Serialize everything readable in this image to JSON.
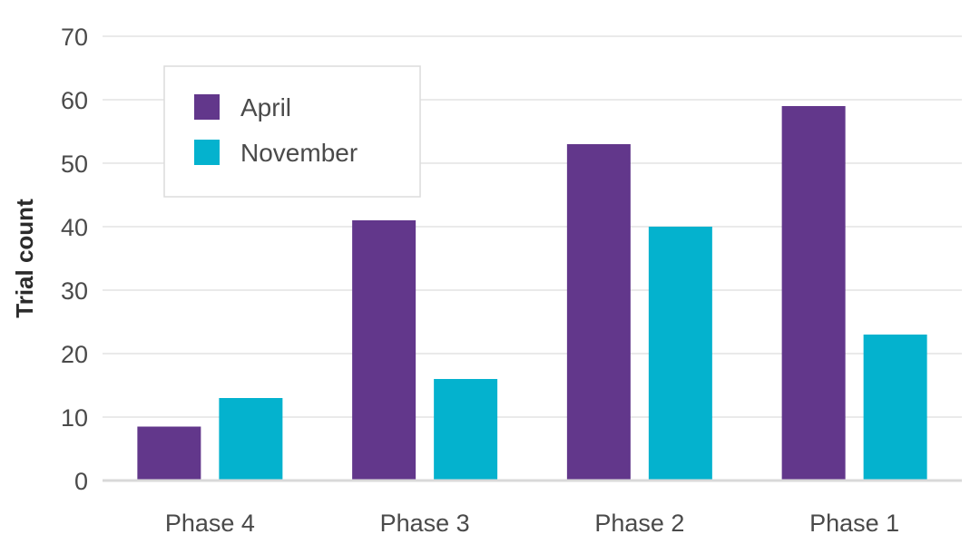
{
  "chart_data": {
    "type": "bar",
    "title": "",
    "xlabel": "",
    "ylabel": "Trial count",
    "categories": [
      "Phase 4",
      "Phase 3",
      "Phase 2",
      "Phase 1"
    ],
    "series": [
      {
        "name": "April",
        "color": "#62378b",
        "values": [
          8.5,
          41,
          53,
          59
        ]
      },
      {
        "name": "November",
        "color": "#04b2ce",
        "values": [
          13,
          16,
          40,
          23
        ]
      }
    ],
    "ylim": [
      0,
      70
    ],
    "yticks": [
      0,
      10,
      20,
      30,
      40,
      50,
      60,
      70
    ],
    "grid": true,
    "legend_position": "top-left"
  }
}
